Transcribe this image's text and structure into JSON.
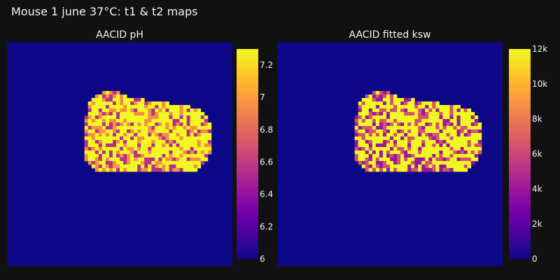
{
  "figure": {
    "title": "Mouse 1 june 37°C: t1 & t2 maps",
    "background": "#111111"
  },
  "colorscale": {
    "name": "Plasma",
    "stops": [
      "#0d0887",
      "#46039f",
      "#7201a8",
      "#9c179e",
      "#bd3786",
      "#d8576b",
      "#ed7953",
      "#fb9f3a",
      "#fdca26",
      "#f0f921"
    ]
  },
  "chart_data": [
    {
      "type": "heatmap",
      "title": "AACID pH",
      "background_value": 6.0,
      "colorbar": {
        "min": 6.0,
        "max": 7.3,
        "tickvals": [
          6,
          6.2,
          6.4,
          6.6,
          6.8,
          7,
          7.2
        ],
        "ticktext": [
          "6",
          "6.2",
          "6.4",
          "6.6",
          "6.8",
          "7",
          "7.2"
        ]
      },
      "region": "brain slice: values mostly ~7.3 (yellow) with scattered ~6.7–7.0 pixels",
      "high_value": 7.3,
      "mid_value": 6.95,
      "low_value": 6.55
    },
    {
      "type": "heatmap",
      "title": "AACID fitted ksw",
      "background_value": 0,
      "colorbar": {
        "min": 0,
        "max": 12000,
        "tickvals": [
          0,
          2000,
          4000,
          6000,
          8000,
          10000,
          12000
        ],
        "ticktext": [
          "0",
          "2k",
          "4k",
          "6k",
          "8k",
          "10k",
          "12k"
        ]
      },
      "region": "brain slice: values mostly ~12000 (yellow) with scattered ~4000–8000 pixels",
      "high_value": 12000,
      "mid_value": 6500,
      "low_value": 4000
    }
  ]
}
